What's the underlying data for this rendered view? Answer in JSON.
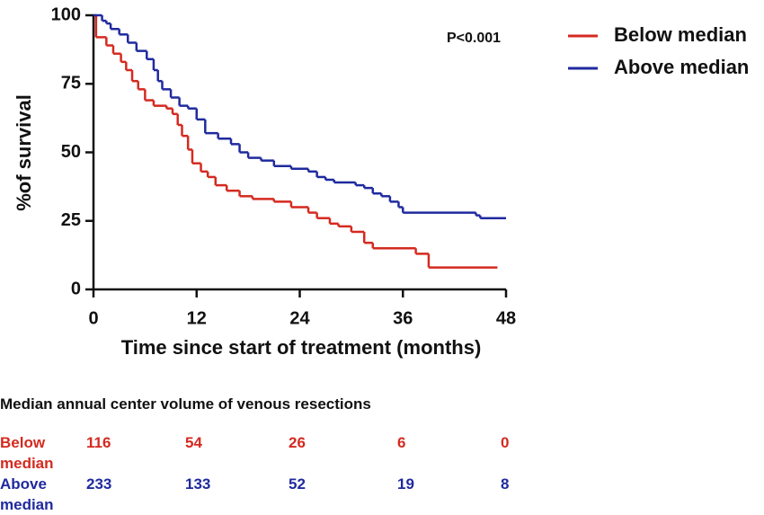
{
  "chart_data": {
    "type": "line",
    "step": "post",
    "xlabel": "Time since start of treatment (months)",
    "ylabel": "%of survival",
    "annotation": "P<0.001",
    "xlim": [
      0,
      48
    ],
    "xticks": [
      0,
      12,
      24,
      36,
      48
    ],
    "ylim": [
      0,
      100
    ],
    "yticks": [
      0,
      25,
      50,
      75,
      100
    ],
    "legend": "upper-right",
    "series": [
      {
        "name": "Below median",
        "color": "#d42a20",
        "x": [
          0,
          0.3,
          1.5,
          2.3,
          3.2,
          3.8,
          4.5,
          5.2,
          6,
          7,
          8.5,
          9.2,
          9.8,
          10.3,
          11,
          11.5,
          12.5,
          13.3,
          14.2,
          15.5,
          17,
          18.5,
          21,
          23,
          25,
          26,
          27.5,
          28.5,
          30,
          31.5,
          32.5,
          37.5,
          39,
          47
        ],
        "values": [
          100,
          92,
          89,
          86,
          83,
          80,
          76,
          73,
          69,
          67,
          66,
          64,
          60,
          56,
          51,
          46,
          43,
          41,
          38,
          36,
          34,
          33,
          32,
          30,
          28,
          26,
          24,
          23,
          21,
          17,
          15,
          13,
          8,
          8
        ]
      },
      {
        "name": "Above median",
        "color": "#1f2a9e",
        "x": [
          0,
          1,
          1.5,
          2,
          3,
          4,
          5,
          6.2,
          7,
          7.5,
          8,
          9,
          10,
          11,
          12,
          13,
          14.5,
          16,
          17,
          18,
          19.5,
          21,
          23,
          25,
          26,
          27,
          28,
          30.5,
          31.5,
          32.5,
          33.5,
          34.5,
          35.5,
          36,
          44.5,
          45,
          48
        ],
        "values": [
          100,
          98,
          97,
          95,
          93,
          90,
          87,
          84,
          80,
          76,
          73,
          70,
          67,
          66,
          62,
          57,
          55,
          53,
          50,
          48,
          47,
          45,
          44,
          43,
          41,
          40,
          39,
          38,
          37,
          35,
          34,
          32,
          30,
          28,
          27,
          26,
          26
        ]
      }
    ],
    "risk_table": {
      "title": "Median annual center volume of venous resections",
      "rows": [
        {
          "label": "Below median",
          "values": [
            116,
            54,
            26,
            6,
            0
          ]
        },
        {
          "label": "Above median",
          "values": [
            233,
            133,
            52,
            19,
            8
          ]
        }
      ]
    }
  }
}
